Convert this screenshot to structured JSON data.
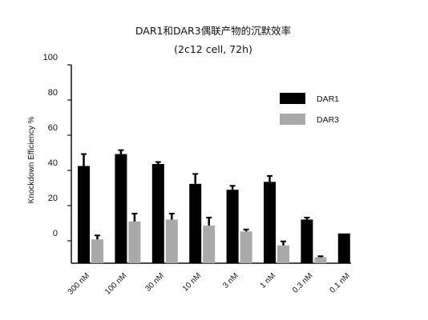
{
  "chart_data": {
    "type": "bar",
    "title": "DAR1和DAR3偶联产物的沉默效率",
    "subtitle": "(2c12 cell, 72h)",
    "xlabel": "",
    "ylabel": "Knockdown Efficiency %",
    "ylim": [
      0,
      100
    ],
    "yticks": [
      "100",
      "80",
      "60",
      "40",
      "20",
      "0"
    ],
    "grid": false,
    "legend_position": "top-right",
    "categories": [
      "300 nM",
      "100 nM",
      "30 nM",
      "10 nM",
      "3 nM",
      "1 nM",
      "0.3 nM",
      "0.1 nM"
    ],
    "series": [
      {
        "name": "DAR1",
        "color": "#000000",
        "values": [
          49,
          55,
          50,
          40,
          37,
          41,
          22,
          15
        ],
        "errors": [
          6,
          2,
          1,
          5,
          2,
          3,
          1,
          0
        ]
      },
      {
        "name": "DAR3",
        "color": "#a9a9a9",
        "values": [
          12,
          21,
          22,
          19,
          16,
          9,
          3,
          null
        ],
        "errors": [
          2,
          4,
          3,
          4,
          1,
          2,
          0.5,
          null
        ]
      }
    ]
  }
}
